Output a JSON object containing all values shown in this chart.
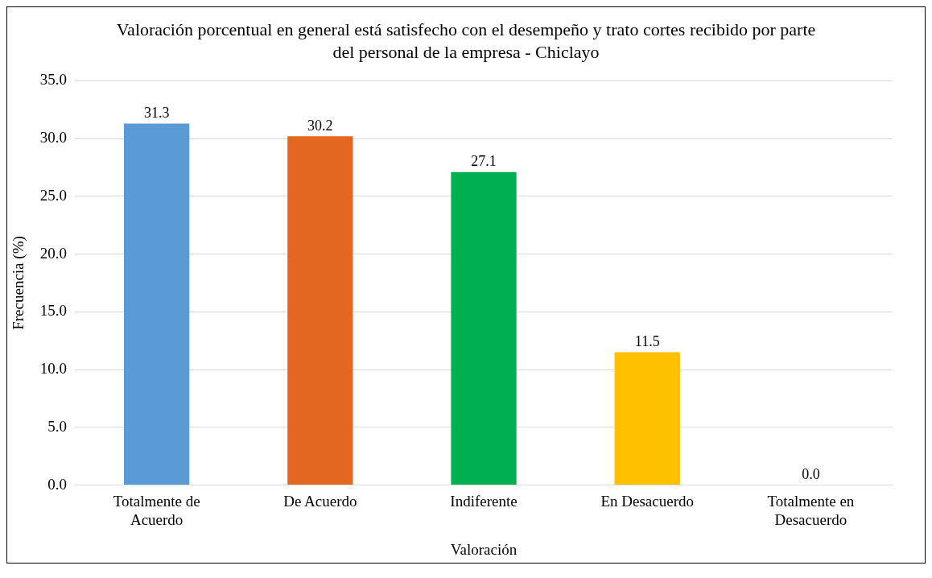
{
  "chart_data": {
    "type": "bar",
    "title": "Valoración porcentual en general está satisfecho con el desempeño y trato cortes recibido por parte del personal de la empresa - Chiclayo",
    "xlabel": "Valoración",
    "ylabel": "Frecuencia (%)",
    "categories": [
      "Totalmente de Acuerdo",
      "De Acuerdo",
      "Indiferente",
      "En Desacuerdo",
      "Totalmente en Desacuerdo"
    ],
    "values": [
      31.3,
      30.2,
      27.1,
      11.5,
      0.0
    ],
    "colors": [
      "#5b9bd5",
      "#e36720",
      "#00b050",
      "#ffc000",
      "#c00000"
    ],
    "value_labels": [
      "31.3",
      "30.2",
      "27.1",
      "11.5",
      "0.0"
    ],
    "ylim": [
      0,
      35
    ],
    "yticks": [
      {
        "value": 0,
        "label": "0.0"
      },
      {
        "value": 5,
        "label": "5.0"
      },
      {
        "value": 10,
        "label": "10.0"
      },
      {
        "value": 15,
        "label": "15.0"
      },
      {
        "value": 20,
        "label": "20.0"
      },
      {
        "value": 25,
        "label": "25.0"
      },
      {
        "value": 30,
        "label": "30.0"
      },
      {
        "value": 35,
        "label": "35.0"
      }
    ],
    "grid": "y",
    "legend": false
  }
}
